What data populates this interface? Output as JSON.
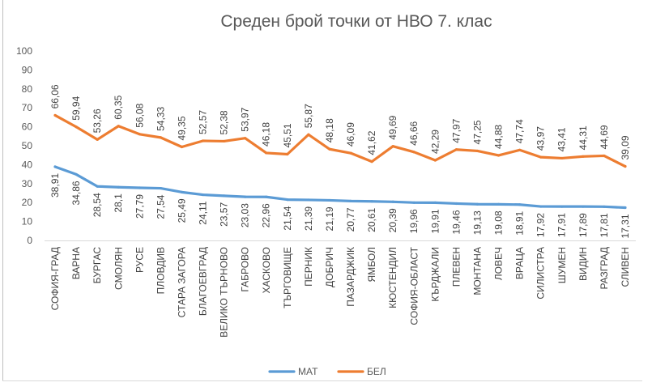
{
  "chart_data": {
    "type": "line",
    "title": "Среден брой точки от НВО 7. клас",
    "xlabel": "",
    "ylabel": "",
    "ylim": [
      0,
      100
    ],
    "yticks": [
      0,
      10,
      20,
      30,
      40,
      50,
      60,
      70,
      80,
      90,
      100
    ],
    "grid": false,
    "legend_position": "bottom",
    "categories": [
      "СОФИЯ-ГРАД",
      "ВАРНА",
      "БУРГАС",
      "СМОЛЯН",
      "РУСЕ",
      "ПЛОВДИВ",
      "СТАРА ЗАГОРА",
      "БЛАГОЕВГРАД",
      "ВЕЛИКО ТЪРНОВО",
      "ГАБРОВО",
      "ХАСКОВО",
      "ТЪРГОВИЩЕ",
      "ПЕРНИК",
      "ДОБРИЧ",
      "ПАЗАРДЖИК",
      "ЯМБОЛ",
      "КЮСТЕНДИЛ",
      "СОФИЯ-ОБЛАСТ",
      "КЪРДЖАЛИ",
      "ПЛЕВЕН",
      "МОНТАНА",
      "ЛОВЕЧ",
      "ВРАЦА",
      "СИЛИСТРА",
      "ШУМЕН",
      "ВИДИН",
      "РАЗГРАД",
      "СЛИВЕН"
    ],
    "series": [
      {
        "name": "МАТ",
        "color": "#5b9bd5",
        "values": [
          38.91,
          34.86,
          28.54,
          28.1,
          27.79,
          27.54,
          25.49,
          24.11,
          23.57,
          23.03,
          22.96,
          21.54,
          21.39,
          21.19,
          20.77,
          20.61,
          20.39,
          19.96,
          19.91,
          19.46,
          19.13,
          19.08,
          18.91,
          17.92,
          17.91,
          17.89,
          17.81,
          17.31
        ],
        "labels": [
          "38,91",
          "34,86",
          "28,54",
          "28,1",
          "27,79",
          "27,54",
          "25,49",
          "24,11",
          "23,57",
          "23,03",
          "22,96",
          "21,54",
          "21,39",
          "21,19",
          "20,77",
          "20,61",
          "20,39",
          "19,96",
          "19,91",
          "19,46",
          "19,13",
          "19,08",
          "18,91",
          "17,92",
          "17,91",
          "17,89",
          "17,81",
          "17,31"
        ]
      },
      {
        "name": "БЕЛ",
        "color": "#ed7d31",
        "values": [
          66.06,
          59.94,
          53.26,
          60.35,
          56.08,
          54.33,
          49.35,
          52.57,
          52.38,
          53.97,
          46.18,
          45.51,
          55.87,
          48.18,
          46.09,
          41.62,
          49.69,
          46.66,
          42.29,
          47.97,
          47.25,
          44.88,
          47.74,
          43.97,
          43.41,
          44.31,
          44.69,
          39.09
        ],
        "labels": [
          "66,06",
          "59,94",
          "53,26",
          "60,35",
          "56,08",
          "54,33",
          "49,35",
          "52,57",
          "52,38",
          "53,97",
          "46,18",
          "45,51",
          "55,87",
          "48,18",
          "46,09",
          "41,62",
          "49,69",
          "46,66",
          "42,29",
          "47,97",
          "47,25",
          "44,88",
          "47,74",
          "43,97",
          "43,41",
          "44,31",
          "44,69",
          "39,09"
        ]
      }
    ]
  }
}
